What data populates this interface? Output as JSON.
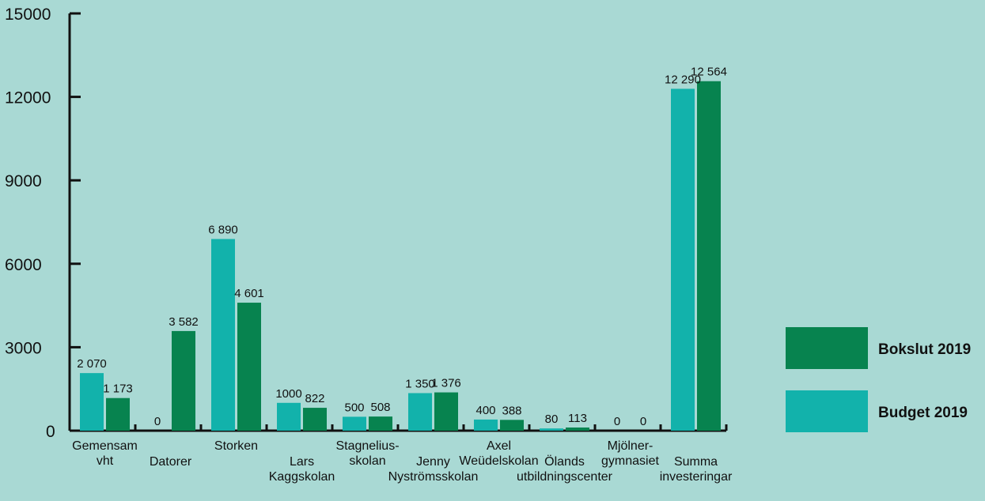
{
  "colors": {
    "background": "#a9d9d4",
    "budget": "#12b2ab",
    "bokslut": "#07834f",
    "axis": "#111111"
  },
  "chart_data": {
    "type": "bar",
    "title": "",
    "xlabel": "",
    "ylabel": "",
    "ylim": [
      0,
      15000
    ],
    "yticks": [
      0,
      3000,
      6000,
      9000,
      12000,
      15000
    ],
    "grid": false,
    "legend_position": "right",
    "categories": [
      [
        "Gemensam",
        "vht"
      ],
      [
        "Datorer"
      ],
      [
        "Storken"
      ],
      [
        "Lars",
        "Kaggskolan"
      ],
      [
        "Stagnelius-",
        "skolan"
      ],
      [
        "Jenny",
        "Nyströmsskolan"
      ],
      [
        "Axel",
        "Weüdelskolan"
      ],
      [
        "Ölands",
        "utbildningscenter"
      ],
      [
        "Mjölner-",
        "gymnasiet"
      ],
      [
        "Summa",
        "investeringar"
      ]
    ],
    "series": [
      {
        "name": "Budget 2019",
        "values": [
          2070,
          0,
          6890,
          1000,
          500,
          1350,
          400,
          80,
          0,
          12290
        ],
        "labels": [
          "2 070",
          "0",
          "6 890",
          "1000",
          "500",
          "1 350",
          "400",
          "80",
          "0",
          "12 290"
        ]
      },
      {
        "name": "Bokslut 2019",
        "values": [
          1173,
          3582,
          4601,
          822,
          508,
          1376,
          388,
          113,
          0,
          12564
        ],
        "labels": [
          "1 173",
          "3 582",
          "4 601",
          "822",
          "508",
          "1 376",
          "388",
          "113",
          "0",
          "12 564"
        ]
      }
    ],
    "legend": [
      {
        "label": "Bokslut 2019",
        "series": 1
      },
      {
        "label": "Budget 2019",
        "series": 0
      }
    ]
  }
}
